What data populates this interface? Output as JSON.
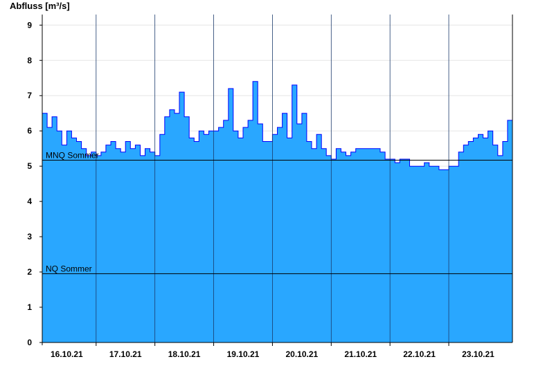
{
  "chart_data": {
    "type": "area",
    "ylabel": "Abfluss [m³/s]",
    "xlabel": "",
    "title": "",
    "ylim": [
      0,
      9.3
    ],
    "y_ticks": [
      0,
      1,
      2,
      3,
      4,
      5,
      6,
      7,
      8,
      9
    ],
    "x_range": [
      "2021-10-15T14:00",
      "2021-10-23T14:00"
    ],
    "x_tick_labels": [
      "16.10.21",
      "17.10.21",
      "18.10.21",
      "19.10.21",
      "20.10.21",
      "21.10.21",
      "22.10.21",
      "23.10.21"
    ],
    "x_tick_dates": [
      "2021-10-16T00:00",
      "2021-10-17T00:00",
      "2021-10-18T00:00",
      "2021-10-19T00:00",
      "2021-10-20T00:00",
      "2021-10-21T00:00",
      "2021-10-22T00:00",
      "2021-10-23T00:00"
    ],
    "day_boundaries": [
      "2021-10-16T12:00",
      "2021-10-17T12:00",
      "2021-10-18T12:00",
      "2021-10-19T12:00",
      "2021-10-20T12:00",
      "2021-10-21T12:00",
      "2021-10-22T12:00"
    ],
    "grid": true,
    "legend": "none",
    "colors": {
      "fill": "#29a7ff",
      "line": "#0000ff",
      "reference": "#000000",
      "grid": "#e6e6e6"
    },
    "reference_lines": [
      {
        "label": "MNQ Sommer",
        "value": 5.17
      },
      {
        "label": "NQ Sommer",
        "value": 1.95
      }
    ],
    "series": [
      {
        "x": [
          "2021-10-15T14:00",
          "2021-10-15T16:00",
          "2021-10-15T18:00",
          "2021-10-15T20:00",
          "2021-10-15T22:00",
          "2021-10-16T00:00",
          "2021-10-16T02:00",
          "2021-10-16T04:00",
          "2021-10-16T06:00",
          "2021-10-16T08:00",
          "2021-10-16T10:00",
          "2021-10-16T12:00",
          "2021-10-16T14:00",
          "2021-10-16T16:00",
          "2021-10-16T18:00",
          "2021-10-16T20:00",
          "2021-10-16T22:00",
          "2021-10-17T00:00",
          "2021-10-17T02:00",
          "2021-10-17T04:00",
          "2021-10-17T06:00",
          "2021-10-17T08:00",
          "2021-10-17T10:00",
          "2021-10-17T12:00",
          "2021-10-17T14:00",
          "2021-10-17T16:00",
          "2021-10-17T18:00",
          "2021-10-17T20:00",
          "2021-10-17T22:00",
          "2021-10-18T00:00",
          "2021-10-18T02:00",
          "2021-10-18T04:00",
          "2021-10-18T06:00",
          "2021-10-18T08:00",
          "2021-10-18T10:00",
          "2021-10-18T12:00",
          "2021-10-18T14:00",
          "2021-10-18T16:00",
          "2021-10-18T18:00",
          "2021-10-18T20:00",
          "2021-10-18T22:00",
          "2021-10-19T00:00",
          "2021-10-19T02:00",
          "2021-10-19T04:00",
          "2021-10-19T06:00",
          "2021-10-19T08:00",
          "2021-10-19T10:00",
          "2021-10-19T12:00",
          "2021-10-19T14:00",
          "2021-10-19T16:00",
          "2021-10-19T18:00",
          "2021-10-19T20:00",
          "2021-10-19T22:00",
          "2021-10-20T00:00",
          "2021-10-20T02:00",
          "2021-10-20T04:00",
          "2021-10-20T06:00",
          "2021-10-20T08:00",
          "2021-10-20T10:00",
          "2021-10-20T12:00",
          "2021-10-20T14:00",
          "2021-10-20T16:00",
          "2021-10-20T18:00",
          "2021-10-20T20:00",
          "2021-10-20T22:00",
          "2021-10-21T00:00",
          "2021-10-21T02:00",
          "2021-10-21T04:00",
          "2021-10-21T06:00",
          "2021-10-21T08:00",
          "2021-10-21T10:00",
          "2021-10-21T12:00",
          "2021-10-21T14:00",
          "2021-10-21T16:00",
          "2021-10-21T18:00",
          "2021-10-21T20:00",
          "2021-10-21T22:00",
          "2021-10-22T00:00",
          "2021-10-22T02:00",
          "2021-10-22T04:00",
          "2021-10-22T06:00",
          "2021-10-22T08:00",
          "2021-10-22T10:00",
          "2021-10-22T12:00",
          "2021-10-22T14:00",
          "2021-10-22T16:00",
          "2021-10-22T18:00",
          "2021-10-22T20:00",
          "2021-10-22T22:00",
          "2021-10-23T00:00",
          "2021-10-23T02:00",
          "2021-10-23T04:00",
          "2021-10-23T06:00",
          "2021-10-23T08:00",
          "2021-10-23T10:00",
          "2021-10-23T12:00",
          "2021-10-23T14:00"
        ],
        "y": [
          6.5,
          6.1,
          6.4,
          6.0,
          5.6,
          6.0,
          5.8,
          5.7,
          5.5,
          5.3,
          5.4,
          5.3,
          5.4,
          5.6,
          5.7,
          5.5,
          5.4,
          5.7,
          5.5,
          5.6,
          5.3,
          5.5,
          5.4,
          5.3,
          5.9,
          6.4,
          6.6,
          6.5,
          7.1,
          6.4,
          5.8,
          5.7,
          6.0,
          5.9,
          6.0,
          6.0,
          6.1,
          6.3,
          7.2,
          6.0,
          5.8,
          6.1,
          6.3,
          7.4,
          6.2,
          5.7,
          5.7,
          5.9,
          6.1,
          6.5,
          5.8,
          7.3,
          6.2,
          6.5,
          5.7,
          5.5,
          5.9,
          5.5,
          5.3,
          5.2,
          5.5,
          5.4,
          5.3,
          5.4,
          5.5,
          5.5,
          5.5,
          5.5,
          5.5,
          5.4,
          5.2,
          5.2,
          5.1,
          5.2,
          5.2,
          5.0,
          5.0,
          5.0,
          5.1,
          5.0,
          5.0,
          4.9,
          4.9,
          5.0,
          5.0,
          5.4,
          5.6,
          5.7,
          5.8,
          5.9,
          5.8,
          6.0,
          5.6,
          5.3,
          5.7,
          6.3,
          6.2
        ]
      }
    ]
  }
}
